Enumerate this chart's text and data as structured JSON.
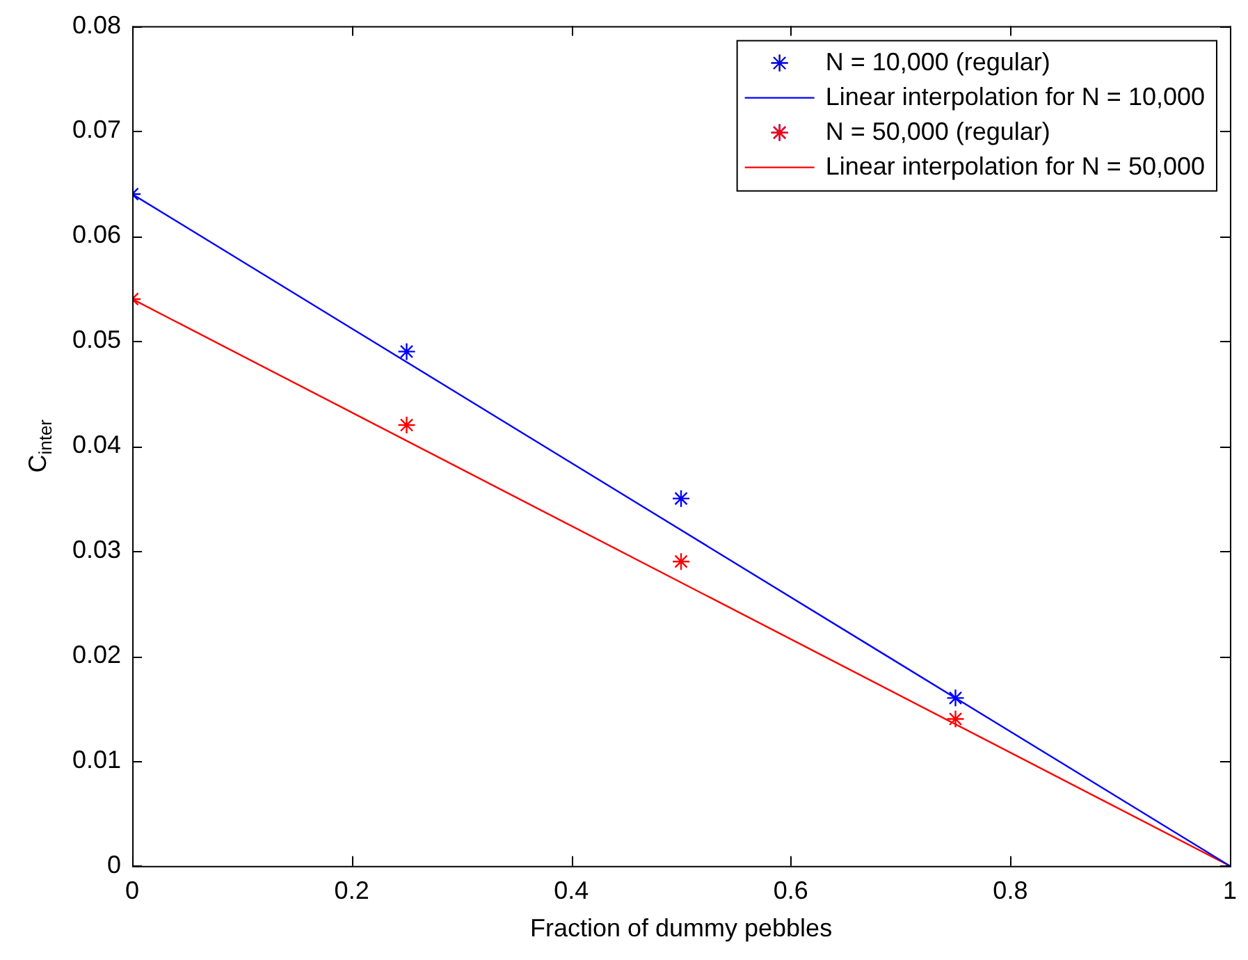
{
  "chart_data": {
    "type": "scatter",
    "xlabel": "Fraction of dummy pebbles",
    "ylabel": "C$_{inter}$",
    "xlim": [
      0,
      1
    ],
    "xticks": [
      0,
      0.2,
      0.4,
      0.6,
      0.8,
      1
    ],
    "ylim": [
      0,
      0.08
    ],
    "yticks": [
      0,
      0.01,
      0.02,
      0.03,
      0.04,
      0.05,
      0.06,
      0.07,
      0.08
    ],
    "grid": false,
    "legend": "top right",
    "series": [
      {
        "name": "N = 10,000 (regular)",
        "type": "scatter",
        "marker": "cross",
        "color": "#0000ff",
        "x": [
          0,
          0.25,
          0.5,
          0.75
        ],
        "values": [
          0.064,
          0.049,
          0.035,
          0.016
        ]
      },
      {
        "name": "Linear interpolation for N = 10,000",
        "type": "line",
        "marker": "none",
        "color": "#0000ff",
        "x": [
          0,
          1
        ],
        "values": [
          0.064,
          0
        ]
      },
      {
        "name": "N = 50,000 (regular)",
        "type": "scatter",
        "marker": "cross",
        "color": "#ff0000",
        "x": [
          0,
          0.25,
          0.5,
          0.75
        ],
        "values": [
          0.054,
          0.042,
          0.029,
          0.014
        ]
      },
      {
        "name": "Linear interpolation for N = 50,000",
        "type": "line",
        "marker": "none",
        "color": "#ff0000",
        "x": [
          0,
          1
        ],
        "values": [
          0.054,
          0
        ]
      }
    ]
  }
}
